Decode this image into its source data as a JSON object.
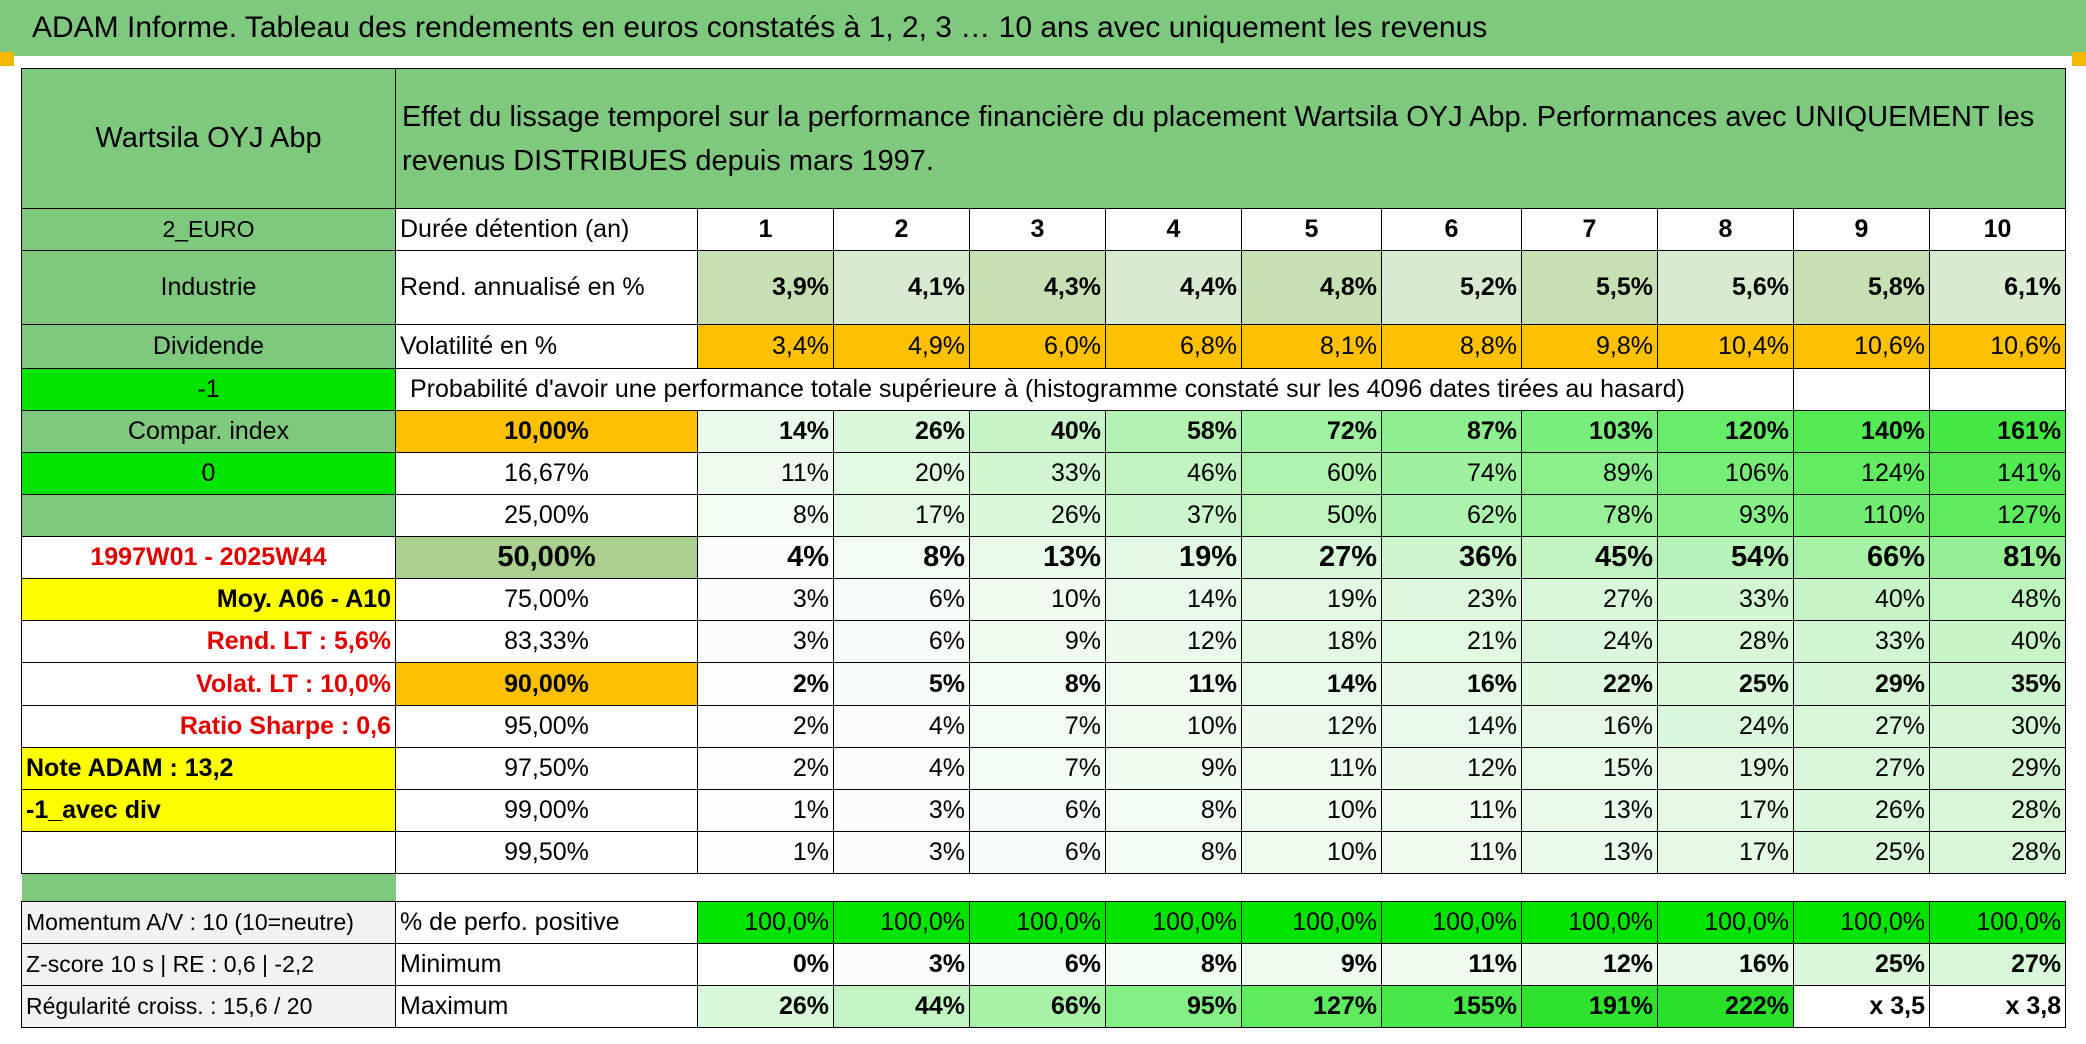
{
  "title": "ADAM Informe. Tableau des rendements en euros constatés à 1, 2, 3 … 10 ans avec uniquement les revenus",
  "header": {
    "asset_name": "Wartsila OYJ Abp",
    "description": "Effet du lissage temporel sur la performance financière du placement Wartsila OYJ Abp. Performances avec UNIQUEMENT les revenus DISTRIBUES depuis mars 1997."
  },
  "left_labels": {
    "currency": "2_EURO",
    "sector": "Industrie",
    "dividend": "Dividende",
    "flag1": "-1",
    "compar_index": "Compar. index",
    "flag0": "0",
    "period": "1997W01 - 2025W44",
    "moy": "Moy. A06 - A10",
    "rend_lt": "Rend. LT :   5,6%",
    "volat_lt": "Volat. LT :   10,0%",
    "sharpe": "Ratio Sharpe :   0,6",
    "note": "Note ADAM : 13,2",
    "avec_div": "-1_avec div",
    "momentum": "Momentum A/V : 10 (10=neutre)",
    "zscore": "Z-score 10 s | RE : 0,6 | -2,2",
    "regularite": "Régularité croiss. : 15,6 / 20"
  },
  "rows": {
    "duree_label": "Durée détention (an)",
    "years": [
      "1",
      "2",
      "3",
      "4",
      "5",
      "6",
      "7",
      "8",
      "9",
      "10"
    ],
    "rend_label": "Rend. annualisé en %",
    "rend": [
      "3,9%",
      "4,1%",
      "4,3%",
      "4,4%",
      "4,8%",
      "5,2%",
      "5,5%",
      "5,6%",
      "5,8%",
      "6,1%"
    ],
    "vol_label": "Volatilité en %",
    "vol": [
      "3,4%",
      "4,9%",
      "6,0%",
      "6,8%",
      "8,1%",
      "8,8%",
      "9,8%",
      "10,4%",
      "10,6%",
      "10,6%"
    ],
    "prob_label": "Probabilité d'avoir une performance totale supérieure à (histogramme constaté sur les 4096 dates tirées au hasard)"
  },
  "percentiles": [
    {
      "p": "10,00%",
      "v": [
        "14%",
        "26%",
        "40%",
        "58%",
        "72%",
        "87%",
        "103%",
        "120%",
        "140%",
        "161%"
      ]
    },
    {
      "p": "16,67%",
      "v": [
        "11%",
        "20%",
        "33%",
        "46%",
        "60%",
        "74%",
        "89%",
        "106%",
        "124%",
        "141%"
      ]
    },
    {
      "p": "25,00%",
      "v": [
        "8%",
        "17%",
        "26%",
        "37%",
        "50%",
        "62%",
        "78%",
        "93%",
        "110%",
        "127%"
      ]
    },
    {
      "p": "50,00%",
      "v": [
        "4%",
        "8%",
        "13%",
        "19%",
        "27%",
        "36%",
        "45%",
        "54%",
        "66%",
        "81%"
      ]
    },
    {
      "p": "75,00%",
      "v": [
        "3%",
        "6%",
        "10%",
        "14%",
        "19%",
        "23%",
        "27%",
        "33%",
        "40%",
        "48%"
      ]
    },
    {
      "p": "83,33%",
      "v": [
        "3%",
        "6%",
        "9%",
        "12%",
        "18%",
        "21%",
        "24%",
        "28%",
        "33%",
        "40%"
      ]
    },
    {
      "p": "90,00%",
      "v": [
        "2%",
        "5%",
        "8%",
        "11%",
        "14%",
        "16%",
        "22%",
        "25%",
        "29%",
        "35%"
      ]
    },
    {
      "p": "95,00%",
      "v": [
        "2%",
        "4%",
        "7%",
        "10%",
        "12%",
        "14%",
        "16%",
        "24%",
        "27%",
        "30%"
      ]
    },
    {
      "p": "97,50%",
      "v": [
        "2%",
        "4%",
        "7%",
        "9%",
        "11%",
        "12%",
        "15%",
        "19%",
        "27%",
        "29%"
      ]
    },
    {
      "p": "99,00%",
      "v": [
        "1%",
        "3%",
        "6%",
        "8%",
        "10%",
        "11%",
        "13%",
        "17%",
        "26%",
        "28%"
      ]
    },
    {
      "p": "99,50%",
      "v": [
        "1%",
        "3%",
        "6%",
        "8%",
        "10%",
        "11%",
        "13%",
        "17%",
        "25%",
        "28%"
      ]
    }
  ],
  "bottom": {
    "pos_label": "% de perfo. positive",
    "pos": [
      "100,0%",
      "100,0%",
      "100,0%",
      "100,0%",
      "100,0%",
      "100,0%",
      "100,0%",
      "100,0%",
      "100,0%",
      "100,0%"
    ],
    "min_label": "Minimum",
    "min": [
      "0%",
      "3%",
      "6%",
      "8%",
      "9%",
      "11%",
      "12%",
      "16%",
      "25%",
      "27%"
    ],
    "max_label": "Maximum",
    "max": [
      "26%",
      "44%",
      "66%",
      "95%",
      "127%",
      "155%",
      "191%",
      "222%",
      "x 3,5",
      "x 3,8"
    ]
  },
  "colors": {
    "green_header": "#7fc97f",
    "bright_green": "#00e400",
    "orange": "#ffc000",
    "yellow": "#ffff00"
  }
}
